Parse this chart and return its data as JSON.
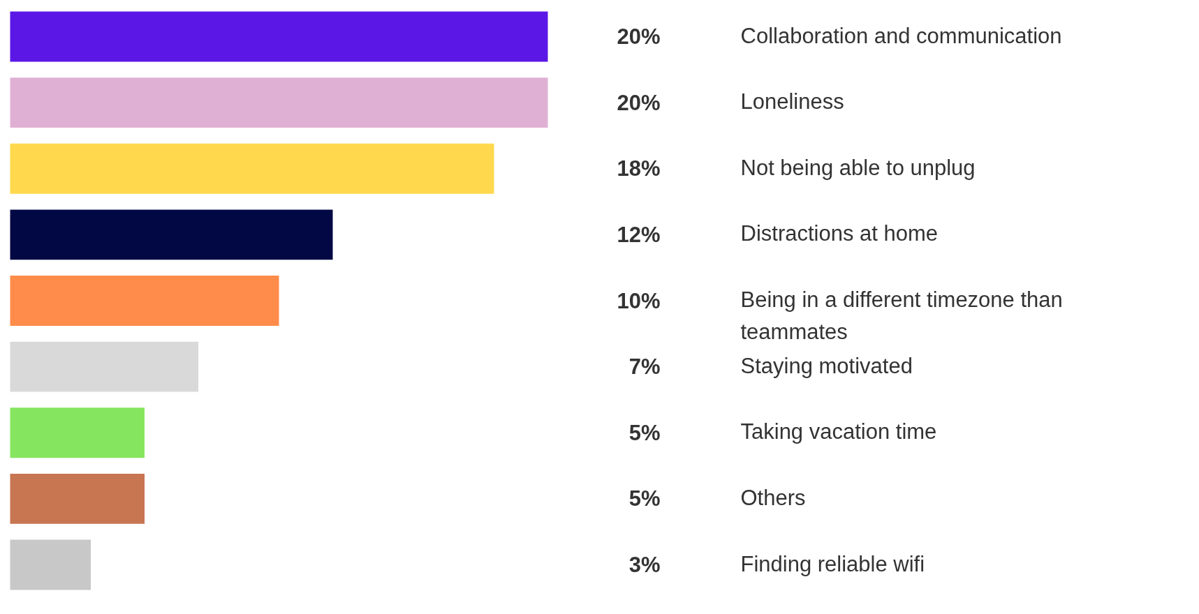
{
  "chart_data": {
    "type": "bar",
    "orientation": "horizontal",
    "categories": [
      "Collaboration and communication",
      "Loneliness",
      "Not being able to unplug",
      "Distractions at home",
      "Being in a different timezone than teammates",
      "Staying motivated",
      "Taking vacation time",
      "Others",
      "Finding reliable wifi"
    ],
    "values": [
      20,
      20,
      18,
      12,
      10,
      7,
      5,
      5,
      3
    ],
    "value_labels": [
      "20%",
      "20%",
      "18%",
      "12%",
      "10%",
      "7%",
      "5%",
      "5%",
      "3%"
    ],
    "colors": [
      "#5b17e6",
      "#e0b0d4",
      "#ffd84d",
      "#020844",
      "#ff8c4a",
      "#d9d9d9",
      "#86e55e",
      "#c87552",
      "#c8c8c8"
    ],
    "grid": false,
    "legend": false
  }
}
